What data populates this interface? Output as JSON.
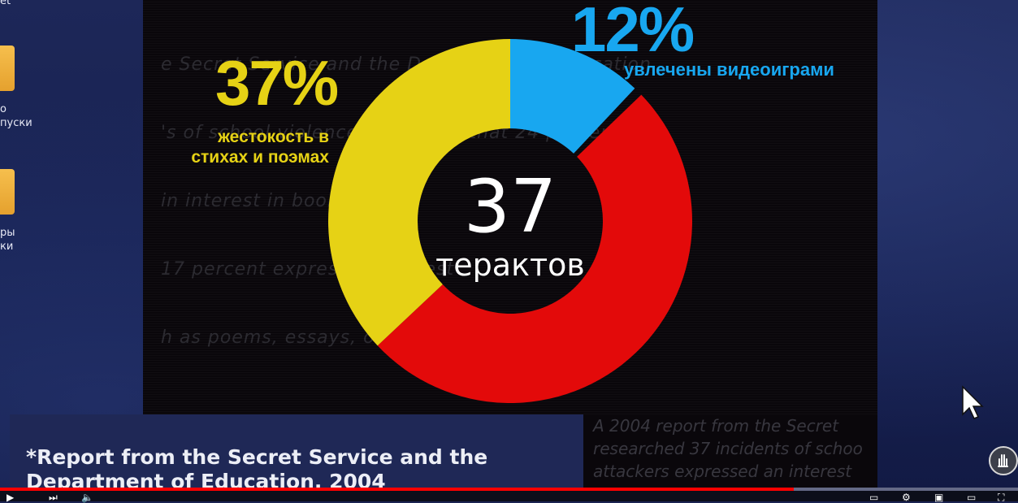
{
  "desktop": {
    "top_label": "et",
    "folders": [
      {
        "label_line1": "о",
        "label_line2": "пуски"
      },
      {
        "label_line1": "ры",
        "label_line2": "ки"
      }
    ]
  },
  "background_text": {
    "top_lines": [
      "e Secret Service and the Department of Education",
      "'s of school violence and found that 24 percent",
      "in interest in books",
      "17 percent expressed interest",
      "h as poems, essays, or"
    ],
    "bottom_lines": [
      "A 2004 report from the Secret",
      "researched 37 incidents of schoo",
      "attackers expressed an interest"
    ]
  },
  "chart_data": {
    "type": "pie",
    "labels": [
      "жестокость в стихах и поэмах",
      "увлечены видеоиграми"
    ],
    "values": [
      37,
      12
    ],
    "display_percentages": [
      "37%",
      "12%"
    ],
    "center_value": "37",
    "center_label": "терактов",
    "colors": {
      "yellow": "#e6d215",
      "blue": "#18a7f0",
      "red": "#e30a0a"
    }
  },
  "labels": {
    "yellow_pct": "37%",
    "yellow_line1": "жестокость в",
    "yellow_line2": "стихах и поэмах",
    "blue_pct": "12%",
    "blue_text": "увлечены видеоиграми"
  },
  "citation": "*Report from the Secret Service and the Department of Education, 2004",
  "player": {
    "progress_fraction": 0.78
  }
}
